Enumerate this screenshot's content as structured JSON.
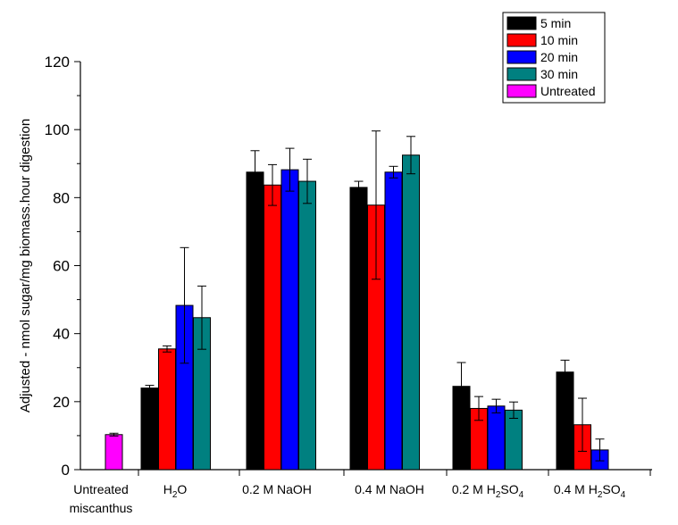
{
  "chart_data": {
    "type": "bar",
    "title": "",
    "xlabel": "",
    "ylabel": "Adjusted - nmol sugar/mg biomass.hour digestion",
    "ylim": [
      0,
      120
    ],
    "yticks": [
      "0",
      "20",
      "40",
      "60",
      "80",
      "100",
      "120"
    ],
    "grid": false,
    "legend_position": "top-right",
    "categories": [
      {
        "line1": "Untreated",
        "line2": "miscanthus",
        "sub": "",
        "tail": ""
      },
      {
        "line1": "H",
        "line2": "",
        "sub": "2",
        "tail": "O"
      },
      {
        "line1": "0.2 M NaOH",
        "line2": "",
        "sub": "",
        "tail": ""
      },
      {
        "line1": "0.4 M NaOH",
        "line2": "",
        "sub": "",
        "tail": ""
      },
      {
        "line1": "0.2 M H",
        "line2": "",
        "sub": "2",
        "tail": "SO",
        "sub2": "4"
      },
      {
        "line1": "0.4 M H",
        "line2": "",
        "sub": "2",
        "tail": "SO",
        "sub2": "4"
      }
    ],
    "series": [
      {
        "name": "5 min",
        "color": "#000000",
        "values": [
          null,
          24.0,
          87.5,
          83.0,
          24.5,
          28.7
        ],
        "errors": [
          null,
          0.8,
          6.3,
          1.8,
          7.0,
          3.5
        ]
      },
      {
        "name": "10 min",
        "color": "#ff0000",
        "values": [
          null,
          35.5,
          83.7,
          77.8,
          18.0,
          13.2
        ],
        "errors": [
          null,
          0.9,
          6.0,
          21.8,
          3.5,
          7.8
        ]
      },
      {
        "name": "20 min",
        "color": "#0000ff",
        "values": [
          null,
          48.3,
          88.2,
          87.5,
          18.7,
          5.8
        ],
        "errors": [
          null,
          17.0,
          6.3,
          1.7,
          2.0,
          3.2
        ]
      },
      {
        "name": "30 min",
        "color": "#008080",
        "values": [
          null,
          44.7,
          84.8,
          92.5,
          17.5,
          null
        ],
        "errors": [
          null,
          9.3,
          6.5,
          5.5,
          2.4,
          null
        ]
      },
      {
        "name": "Untreated",
        "color": "#ff00ff",
        "values": [
          10.3,
          null,
          null,
          null,
          null,
          null
        ],
        "errors": [
          0.4,
          null,
          null,
          null,
          null,
          null
        ]
      }
    ]
  }
}
